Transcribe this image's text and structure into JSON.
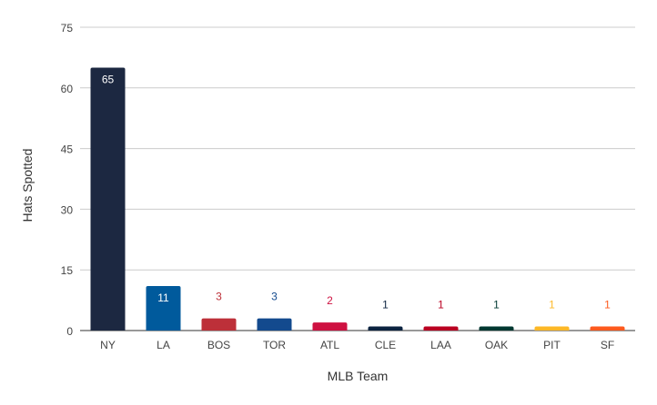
{
  "chart_data": {
    "type": "bar",
    "categories": [
      "NY",
      "LA",
      "BOS",
      "TOR",
      "ATL",
      "CLE",
      "LAA",
      "OAK",
      "PIT",
      "SF"
    ],
    "values": [
      65,
      11,
      3,
      3,
      2,
      1,
      1,
      1,
      1,
      1
    ],
    "colors": [
      "#1c2841",
      "#005a9c",
      "#bd3039",
      "#134a8e",
      "#ce1141",
      "#0c2340",
      "#ba0021",
      "#003831",
      "#fdb827",
      "#fd5a1e"
    ],
    "xlabel": "MLB Team",
    "ylabel": "Hats Spotted",
    "ylim": [
      0,
      75
    ],
    "yticks": [
      0,
      15,
      30,
      45,
      60,
      75
    ],
    "grid": true
  }
}
